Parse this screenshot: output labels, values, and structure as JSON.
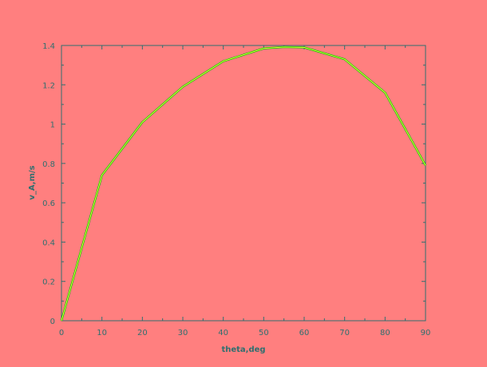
{
  "chart_data": {
    "type": "line",
    "xlabel": "theta,deg",
    "ylabel": "v_A,m/s",
    "xlim": [
      0,
      90
    ],
    "ylim": [
      0,
      1.4
    ],
    "x_ticks": [
      "0",
      "10",
      "20",
      "30",
      "40",
      "50",
      "60",
      "70",
      "80",
      "90"
    ],
    "y_ticks": [
      "0",
      "0.2",
      "0.4",
      "0.6",
      "0.8",
      "1",
      "1.2",
      "1.4"
    ],
    "grid": false,
    "x": [
      0,
      10,
      20,
      30,
      40,
      50,
      55,
      60,
      70,
      80,
      90
    ],
    "series": [
      {
        "values": [
          0,
          0.74,
          1.01,
          1.19,
          1.32,
          1.385,
          1.392,
          1.39,
          1.33,
          1.16,
          0.79
        ]
      }
    ]
  },
  "colors": {
    "background": "#ff7f7f",
    "axis": "#2f6f6f",
    "label": "#2f6f6f",
    "line": "#00c800",
    "line_highlight": "#ffff40"
  }
}
